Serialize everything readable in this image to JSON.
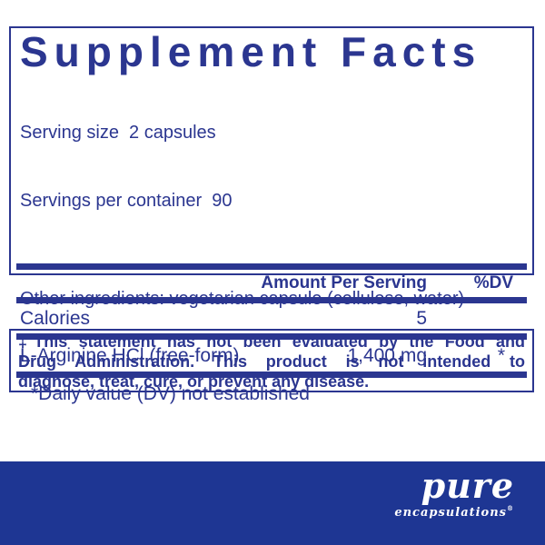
{
  "colors": {
    "navy": "#2b3690",
    "footer_blue": "#1e3693",
    "background": "#ffffff",
    "logo_text": "#ffffff"
  },
  "panel": {
    "title": "Supplement Facts",
    "serving_size_line": "Serving size  2 capsules",
    "servings_per_container_line": "Servings per container  90",
    "header": {
      "amount_label": "Amount Per Serving",
      "dv_label": "%DV"
    },
    "rows": [
      {
        "name": "Calories",
        "amount": "5",
        "dv": ""
      },
      {
        "name": "L-Arginine HCl (free-form)",
        "amount": "1,400 mg",
        "dv": "*"
      }
    ],
    "footnote": "*Daily value (DV) not established"
  },
  "other_ingredients": "Other ingredients: vegetarian capsule (cellulose, water)",
  "disclaimer": {
    "lines": [
      "‡This statement has not been evaluated by the Food and",
      "Drug Administration. This product is not intended to",
      "diagnose, treat, cure, or prevent any disease."
    ]
  },
  "brand": {
    "name": "pure",
    "subname": "encapsulations",
    "registered": "®"
  }
}
